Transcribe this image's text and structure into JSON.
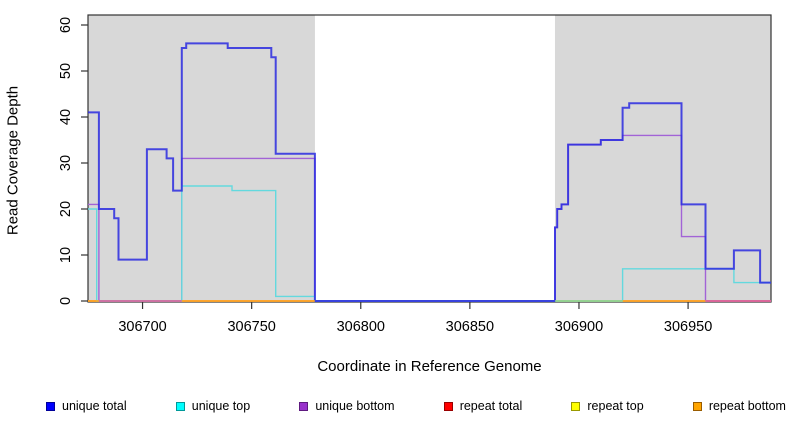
{
  "chart_data": {
    "type": "line",
    "subtype": "step-coverage-plot",
    "title": "",
    "xlabel": "Coordinate in Reference Genome",
    "ylabel": "Read Coverage Depth",
    "xlim": [
      306675,
      306988
    ],
    "ylim": [
      0,
      62
    ],
    "xticks": [
      306700,
      306750,
      306800,
      306850,
      306900,
      306950
    ],
    "yticks": [
      0,
      10,
      20,
      30,
      40,
      50,
      60
    ],
    "grid": false,
    "legend_position": "bottom",
    "background_color": "#ffffff",
    "shaded_region_color": "#d8d8d8",
    "shaded_regions": [
      {
        "from": 306675,
        "to": 306779
      },
      {
        "from": 306889,
        "to": 306988
      }
    ],
    "series": [
      {
        "name": "unique total",
        "line_color": "#2b2be0",
        "swatch_fill": "#0000ff",
        "swatch_border": "#000099",
        "line_width": 2,
        "opacity": 0.85,
        "steps": [
          [
            306675,
            41
          ],
          [
            306680,
            20
          ],
          [
            306687,
            18
          ],
          [
            306689,
            9
          ],
          [
            306702,
            33
          ],
          [
            306711,
            31
          ],
          [
            306714,
            24
          ],
          [
            306718,
            55
          ],
          [
            306720,
            56
          ],
          [
            306739,
            55
          ],
          [
            306759,
            53
          ],
          [
            306761,
            32
          ],
          [
            306779,
            0
          ],
          [
            306889,
            16
          ],
          [
            306890,
            20
          ],
          [
            306892,
            21
          ],
          [
            306895,
            34
          ],
          [
            306910,
            35
          ],
          [
            306920,
            42
          ],
          [
            306923,
            43
          ],
          [
            306947,
            21
          ],
          [
            306958,
            7
          ],
          [
            306971,
            11
          ],
          [
            306983,
            4
          ]
        ]
      },
      {
        "name": "unique top",
        "line_color": "#63d9de",
        "swatch_fill": "#00ffff",
        "swatch_border": "#009999",
        "line_width": 1.4,
        "opacity": 1,
        "steps": [
          [
            306675,
            20
          ],
          [
            306679,
            0
          ],
          [
            306718,
            25
          ],
          [
            306741,
            24
          ],
          [
            306761,
            1
          ],
          [
            306779,
            0
          ],
          [
            306920,
            7
          ],
          [
            306971,
            4
          ]
        ]
      },
      {
        "name": "unique bottom",
        "line_color": "#a263d6",
        "swatch_fill": "#9932cc",
        "swatch_border": "#5e1a80",
        "line_width": 1.4,
        "opacity": 1,
        "steps": [
          [
            306675,
            21
          ],
          [
            306680,
            0
          ],
          [
            306718,
            31
          ],
          [
            306779,
            0
          ],
          [
            306889,
            16
          ],
          [
            306890,
            20
          ],
          [
            306892,
            21
          ],
          [
            306895,
            34
          ],
          [
            306910,
            35
          ],
          [
            306920,
            36
          ],
          [
            306947,
            14
          ],
          [
            306958,
            0
          ]
        ]
      },
      {
        "name": "repeat total",
        "line_color": "#e0609b",
        "swatch_fill": "#ff0000",
        "swatch_border": "#990000",
        "line_width": 1.4,
        "opacity": 1,
        "steps": [
          [
            306675,
            0
          ]
        ]
      },
      {
        "name": "repeat top",
        "line_color": "#f5f560",
        "swatch_fill": "#ffff00",
        "swatch_border": "#999900",
        "line_width": 1.4,
        "opacity": 1,
        "steps": [
          [
            306675,
            0
          ]
        ]
      },
      {
        "name": "repeat bottom",
        "line_color": "#ffa520",
        "swatch_fill": "#ffa500",
        "swatch_border": "#995c00",
        "line_width": 1.5,
        "opacity": 1,
        "steps": [
          [
            306675,
            0
          ]
        ]
      }
    ],
    "baseline_visible_segments": [
      {
        "from": 306675,
        "to": 306680,
        "color": "#ffa520"
      },
      {
        "from": 306680,
        "to": 306718,
        "color": "#e0609b"
      },
      {
        "from": 306718,
        "to": 306779,
        "color": "#ffa520"
      },
      {
        "from": 306889,
        "to": 306920,
        "color": "#8fd98f"
      },
      {
        "from": 306920,
        "to": 306958,
        "color": "#ffa520"
      },
      {
        "from": 306958,
        "to": 306988,
        "color": "#e0609b"
      }
    ]
  }
}
